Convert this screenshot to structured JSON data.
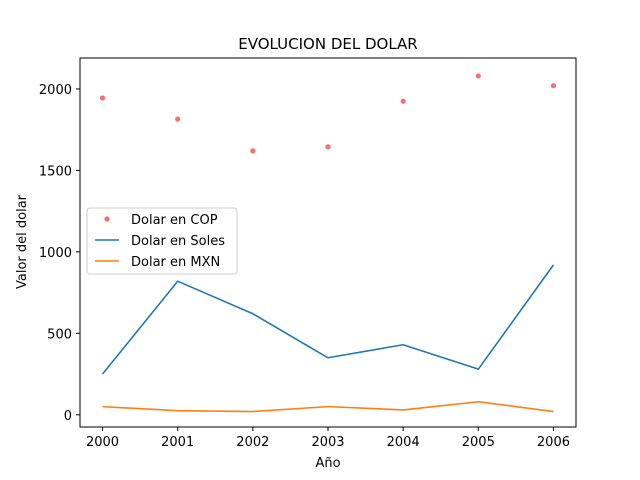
{
  "chart_data": {
    "type": "line",
    "title": "EVOLUCION DEL DOLAR",
    "xlabel": "Año",
    "ylabel": "Valor del dolar",
    "x": [
      2000,
      2001,
      2002,
      2003,
      2004,
      2005,
      2006
    ],
    "xlim": [
      1999.7,
      2006.3
    ],
    "ylim": [
      -75,
      2190
    ],
    "xticks": [
      "2000",
      "2001",
      "2002",
      "2003",
      "2004",
      "2005",
      "2006"
    ],
    "yticks": [
      0,
      500,
      1000,
      1500,
      2000
    ],
    "ytick_labels": [
      "0",
      "500",
      "1000",
      "1500",
      "2000"
    ],
    "grid": false,
    "legend_position": "center-left",
    "series": [
      {
        "name": "Dolar en COP",
        "style": "scatter",
        "color": "#ff6b6b",
        "values": [
          1945,
          1815,
          1620,
          1645,
          1925,
          2080,
          2020
        ]
      },
      {
        "name": "Dolar en Soles",
        "style": "line",
        "color": "#1f77b4",
        "values": [
          250,
          820,
          620,
          350,
          430,
          280,
          920
        ]
      },
      {
        "name": "Dolar en MXN",
        "style": "line",
        "color": "#ff7f0e",
        "values": [
          50,
          25,
          20,
          50,
          30,
          80,
          20
        ]
      }
    ]
  }
}
